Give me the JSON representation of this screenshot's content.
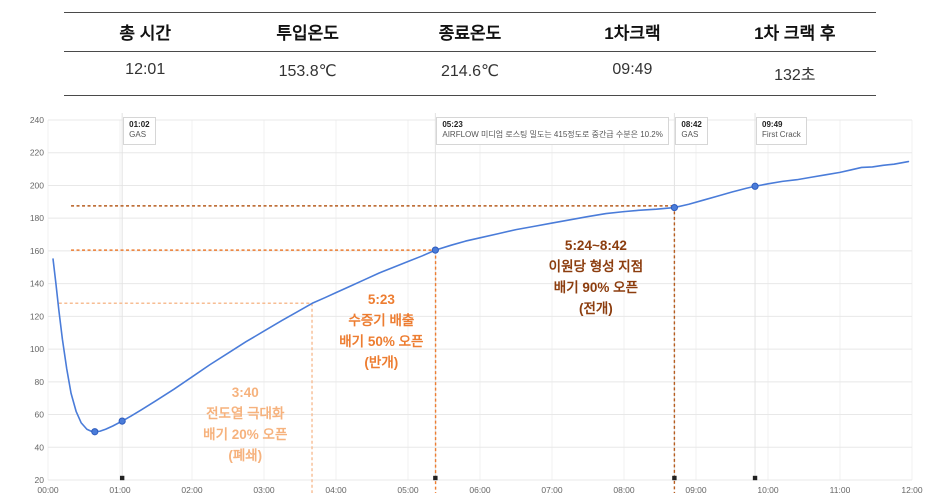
{
  "summary_table": {
    "columns": [
      {
        "header": "총 시간",
        "value": "12:01"
      },
      {
        "header": "투입온도",
        "value": "153.8℃"
      },
      {
        "header": "종료온도",
        "value": "214.6℃"
      },
      {
        "header": "1차크랙",
        "value": "09:49"
      },
      {
        "header": "1차 크랙 후",
        "value": "132초"
      }
    ]
  },
  "chart_data": {
    "type": "line",
    "title": "",
    "x_unit": "minutes (mm:ss)",
    "y_unit": "temperature",
    "xlim": [
      0,
      12
    ],
    "ylim": [
      20,
      240
    ],
    "grid": true,
    "y_ticks": [
      20,
      40,
      60,
      80,
      100,
      120,
      140,
      160,
      180,
      200,
      220,
      240
    ],
    "x_ticks": [
      {
        "t": 0,
        "label": "00:00"
      },
      {
        "t": 1,
        "label": "01:00"
      },
      {
        "t": 2,
        "label": "02:00"
      },
      {
        "t": 3,
        "label": "03:00"
      },
      {
        "t": 4,
        "label": "04:00"
      },
      {
        "t": 5,
        "label": "05:00"
      },
      {
        "t": 6,
        "label": "06:00"
      },
      {
        "t": 7,
        "label": "07:00"
      },
      {
        "t": 8,
        "label": "08:00"
      },
      {
        "t": 9,
        "label": "09:00"
      },
      {
        "t": 10,
        "label": "10:00"
      },
      {
        "t": 11,
        "label": "11:00"
      },
      {
        "t": 12,
        "label": "12:00"
      }
    ],
    "series": [
      {
        "name": "bean-temperature",
        "color": "#4a7cd9",
        "points": [
          [
            0.07,
            155
          ],
          [
            0.11,
            140
          ],
          [
            0.15,
            124
          ],
          [
            0.2,
            106
          ],
          [
            0.26,
            88
          ],
          [
            0.32,
            73
          ],
          [
            0.39,
            62
          ],
          [
            0.46,
            55
          ],
          [
            0.54,
            51
          ],
          [
            0.6,
            49.8
          ],
          [
            0.65,
            49.5
          ],
          [
            0.72,
            49.8
          ],
          [
            0.8,
            51
          ],
          [
            0.9,
            53
          ],
          [
            1.03,
            56
          ],
          [
            1.15,
            59
          ],
          [
            1.3,
            63
          ],
          [
            1.5,
            68.5
          ],
          [
            1.75,
            75.5
          ],
          [
            2.0,
            83
          ],
          [
            2.25,
            90.5
          ],
          [
            2.5,
            97.5
          ],
          [
            2.75,
            104.5
          ],
          [
            3.0,
            111
          ],
          [
            3.25,
            117.5
          ],
          [
            3.45,
            122.5
          ],
          [
            3.67,
            128
          ],
          [
            3.85,
            131.5
          ],
          [
            4.0,
            134.5
          ],
          [
            4.2,
            138.5
          ],
          [
            4.4,
            142.5
          ],
          [
            4.6,
            146.5
          ],
          [
            4.8,
            150
          ],
          [
            5.0,
            153.5
          ],
          [
            5.2,
            157
          ],
          [
            5.38,
            160.5
          ],
          [
            5.6,
            163.5
          ],
          [
            5.8,
            166
          ],
          [
            6.0,
            168
          ],
          [
            6.25,
            170.5
          ],
          [
            6.5,
            173
          ],
          [
            6.75,
            175
          ],
          [
            7.0,
            177
          ],
          [
            7.25,
            179
          ],
          [
            7.5,
            181
          ],
          [
            7.75,
            182.8
          ],
          [
            8.0,
            184
          ],
          [
            8.2,
            184.8
          ],
          [
            8.45,
            185.5
          ],
          [
            8.7,
            186.5
          ],
          [
            8.9,
            188.5
          ],
          [
            9.1,
            191
          ],
          [
            9.3,
            193.5
          ],
          [
            9.5,
            196
          ],
          [
            9.7,
            198.3
          ],
          [
            9.82,
            199.5
          ],
          [
            10.0,
            201
          ],
          [
            10.2,
            202.5
          ],
          [
            10.4,
            203.5
          ],
          [
            10.6,
            205
          ],
          [
            10.8,
            206.5
          ],
          [
            11.0,
            208
          ],
          [
            11.15,
            209.5
          ],
          [
            11.3,
            211
          ],
          [
            11.45,
            211.3
          ],
          [
            11.6,
            212.3
          ],
          [
            11.75,
            213
          ],
          [
            11.95,
            214.6
          ]
        ]
      }
    ],
    "point_markers": [
      [
        0.65,
        49.5
      ],
      [
        1.03,
        56
      ],
      [
        5.38,
        160.5
      ],
      [
        8.7,
        186.5
      ],
      [
        9.82,
        199.5
      ]
    ],
    "axis_event_dots": [
      1.03,
      5.38,
      8.7,
      9.82
    ],
    "annotation_boxes": [
      {
        "t": 1.03,
        "title": "01:02",
        "text": "GAS"
      },
      {
        "t": 5.38,
        "title": "05:23",
        "text": "AIRFLOW 미디엄 로스팅 밀도는 415정도로 중간급 수분은 10.2%"
      },
      {
        "t": 8.7,
        "title": "08:42",
        "text": "GAS"
      },
      {
        "t": 9.82,
        "title": "09:49",
        "text": "First Crack"
      }
    ],
    "reference_lines": [
      {
        "color": "#f7bd93",
        "level": 128,
        "t_start": 0.15,
        "t_end": 3.667
      },
      {
        "color": "#ed7d31",
        "level": 160.5,
        "t_start": 0.32,
        "t_end": 5.383
      },
      {
        "color": "#b65c1e",
        "level": 187.5,
        "t_start": 0.32,
        "t_end": 8.7
      }
    ],
    "callouts": [
      {
        "color": "#f6b27d",
        "center_t": 2.74,
        "top_temp": 79,
        "lines": [
          "3:40",
          "전도열 극대화",
          "배기 20% 오픈",
          "(폐쇄)"
        ]
      },
      {
        "color": "#ed7d31",
        "center_t": 4.63,
        "top_temp": 136,
        "lines": [
          "5:23",
          "수증기 배출",
          "배기 50% 오픈",
          "(반개)"
        ]
      },
      {
        "color": "#8c3d0e",
        "center_t": 7.61,
        "top_temp": 169,
        "lines": [
          "5:24~8:42",
          "이원당 형성 지점",
          "배기 90% 오픈",
          "(전개)"
        ]
      }
    ],
    "legend": "none"
  }
}
